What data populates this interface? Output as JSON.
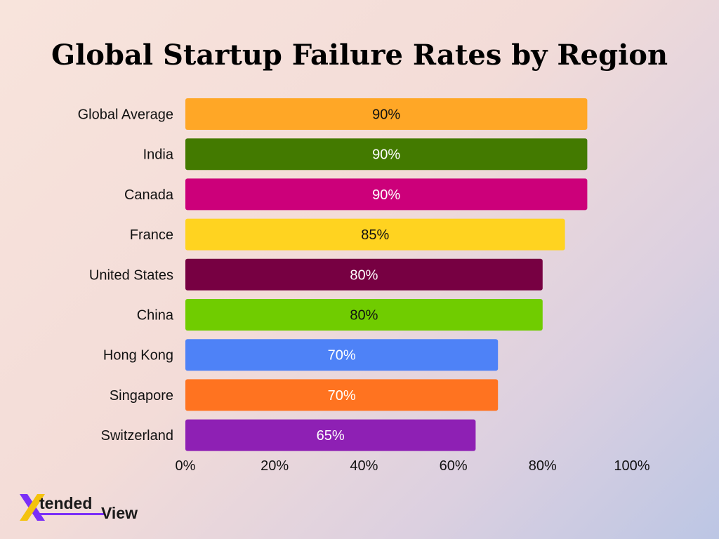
{
  "chart_data": {
    "type": "bar",
    "orientation": "horizontal",
    "title": "Global Startup Failure Rates by Region",
    "categories": [
      "Global Average",
      "India",
      "Canada",
      "France",
      "United States",
      "China",
      "Hong Kong",
      "Singapore",
      "Switzerland"
    ],
    "values": [
      90,
      90,
      90,
      85,
      80,
      80,
      70,
      70,
      65
    ],
    "value_labels": [
      "90%",
      "90%",
      "90%",
      "85%",
      "80%",
      "80%",
      "70%",
      "70%",
      "65%"
    ],
    "colors": [
      "#ffa726",
      "#437a00",
      "#cc007a",
      "#ffd320",
      "#770042",
      "#70cc00",
      "#4e82f7",
      "#ff7320",
      "#8e20b4"
    ],
    "label_colors": [
      "#111111",
      "#ffffff",
      "#ffffff",
      "#111111",
      "#ffffff",
      "#111111",
      "#ffffff",
      "#ffffff",
      "#ffffff"
    ],
    "xlim": [
      0,
      100
    ],
    "xticks": [
      0,
      20,
      40,
      60,
      80,
      100
    ],
    "xtick_labels": [
      "0%",
      "20%",
      "40%",
      "60%",
      "80%",
      "100%"
    ],
    "grid": false,
    "legend": "none"
  },
  "branding": {
    "logo_x": "X",
    "logo_word1": "tended",
    "logo_word2": "View",
    "logo_accent_color": "#7b2ff7"
  }
}
